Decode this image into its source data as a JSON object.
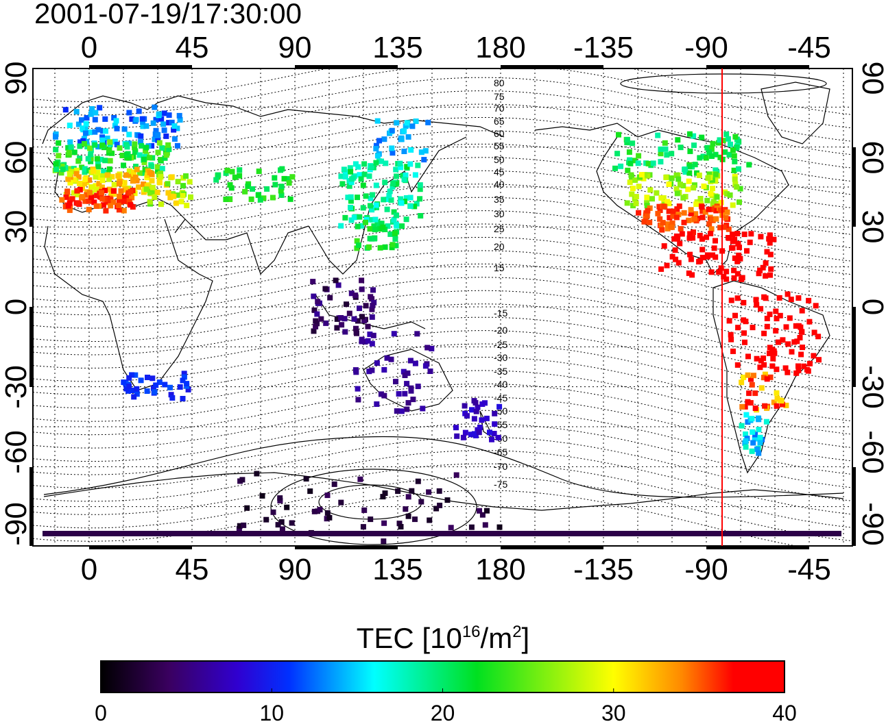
{
  "timestamp": "2001-07-19/17:30:00",
  "map": {
    "projection": "equirectangular",
    "central_longitude": 180,
    "top_lon_labels": [
      "0",
      "45",
      "90",
      "135",
      "180",
      "-135",
      "-90",
      "-45"
    ],
    "bottom_lon_labels": [
      "0",
      "45",
      "90",
      "135",
      "180",
      "-135",
      "-90",
      "-45"
    ],
    "left_lat_labels": [
      "90",
      "60",
      "30",
      "0",
      "-30",
      "-60",
      "-90"
    ],
    "right_lat_labels": [
      "90",
      "60",
      "30",
      "0",
      "-30",
      "-60",
      "-90"
    ],
    "grid": "dotted, 15 deg",
    "marker_longitude": -82,
    "marker_color": "#ff0000",
    "contour_labels": [
      "80",
      "75",
      "70",
      "65",
      "60",
      "55",
      "50",
      "45",
      "40",
      "35",
      "30",
      "25",
      "20",
      "15",
      "-15",
      "-20",
      "-25",
      "-30",
      "-35",
      "-40",
      "-45",
      "-50",
      "-55",
      "-60",
      "-65",
      "-70",
      "-75"
    ]
  },
  "colorbar": {
    "title_main": "TEC  [10",
    "title_sup1": "16",
    "title_mid": "/m",
    "title_sup2": "2",
    "title_end": "]",
    "min": 0,
    "max": 40,
    "tick_labels": [
      "0",
      "10",
      "20",
      "30",
      "40"
    ],
    "stops": [
      {
        "v": 0,
        "color": "#000000"
      },
      {
        "v": 4,
        "color": "#3a0060"
      },
      {
        "v": 8,
        "color": "#3000d0"
      },
      {
        "v": 11,
        "color": "#0030ff"
      },
      {
        "v": 16,
        "color": "#00ffff"
      },
      {
        "v": 22,
        "color": "#00e020"
      },
      {
        "v": 30,
        "color": "#ffff00"
      },
      {
        "v": 34,
        "color": "#ff8800"
      },
      {
        "v": 37,
        "color": "#ff0000"
      },
      {
        "v": 40,
        "color": "#ff0000"
      }
    ]
  }
}
